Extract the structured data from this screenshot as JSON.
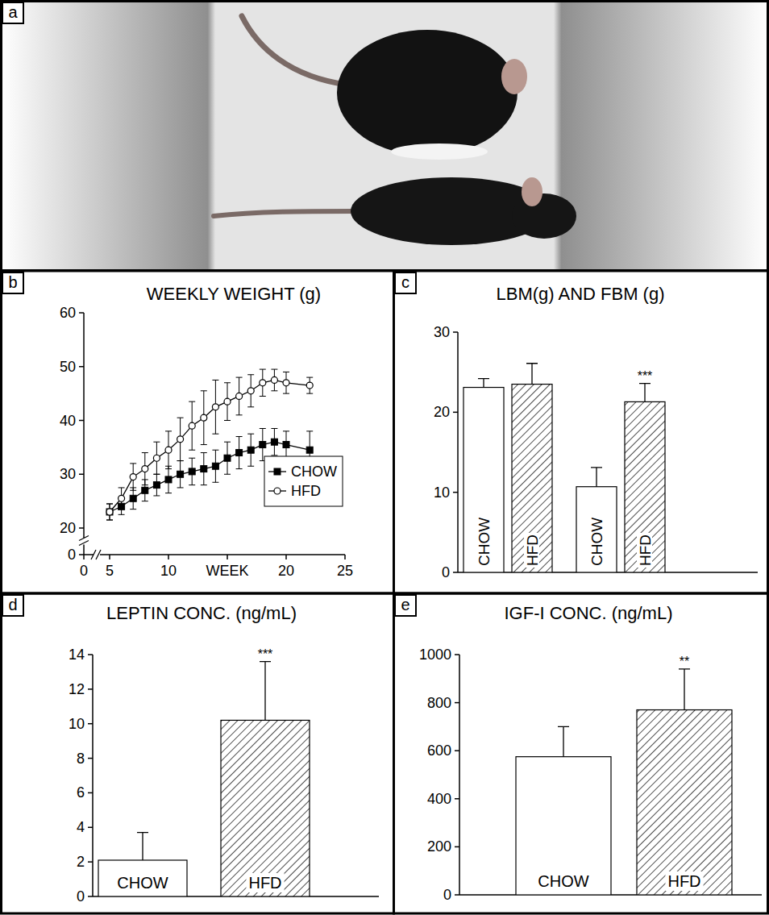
{
  "photo": {
    "panel_label": "a"
  },
  "chart_data": [
    {
      "panel_label": "b",
      "type": "line",
      "title": "WEEKLY WEIGHT (g)",
      "x": [
        5,
        6,
        7,
        8,
        9,
        10,
        11,
        12,
        13,
        14,
        15,
        16,
        17,
        18,
        19,
        20,
        22
      ],
      "series": [
        {
          "name": "CHOW",
          "color": "#000000",
          "marker": "filled_square",
          "values": [
            23,
            24,
            25.5,
            27,
            28,
            29,
            30,
            30.5,
            31,
            31.5,
            33,
            34,
            34.5,
            35.5,
            36,
            35.5,
            34.5
          ],
          "errors": [
            1.5,
            1.5,
            2,
            2,
            2,
            2.5,
            2.5,
            2.5,
            3,
            3,
            3,
            3,
            3,
            3,
            2.5,
            2.5,
            3.5
          ]
        },
        {
          "name": "HFD",
          "color": "#000000",
          "marker": "open_circle",
          "values": [
            23,
            25.5,
            29.5,
            31,
            33,
            34.5,
            36.5,
            39,
            40.5,
            42.5,
            43.5,
            44.5,
            45.5,
            47,
            47.5,
            47,
            46.5
          ],
          "errors": [
            1.5,
            2,
            2.5,
            3,
            3,
            3.5,
            4,
            4.5,
            5,
            5,
            3.5,
            3.5,
            3,
            2.5,
            2,
            2,
            1.5
          ]
        }
      ],
      "xlim": [
        0,
        25
      ],
      "xticks": [
        0,
        5,
        10,
        {
          "value": 15,
          "label": "WEEK"
        },
        20,
        25
      ],
      "ylim": [
        0,
        60
      ],
      "yticks": [
        0,
        20,
        30,
        40,
        50,
        60
      ],
      "legend": "lower right"
    },
    {
      "panel_label": "c",
      "type": "bar",
      "title": "LBM(g) AND FBM (g)",
      "categories": [
        "CHOW",
        "HFD",
        "CHOW",
        "HFD"
      ],
      "values": [
        23.1,
        23.5,
        10.7,
        21.3
      ],
      "errors": [
        1.1,
        2.6,
        2.4,
        2.3
      ],
      "significance": [
        null,
        null,
        null,
        "***"
      ],
      "colors": [
        "#ffffff",
        "#000000",
        "#ffffff",
        "#000000"
      ],
      "ylim": [
        0,
        30
      ],
      "yticks": [
        0,
        10,
        20,
        30
      ]
    },
    {
      "panel_label": "d",
      "type": "bar",
      "title": "LEPTIN CONC. (ng/mL)",
      "categories": [
        "CHOW",
        "HFD"
      ],
      "values": [
        2.1,
        10.2
      ],
      "errors": [
        1.6,
        3.4
      ],
      "significance": [
        null,
        "***"
      ],
      "colors": [
        "#ffffff",
        "#000000"
      ],
      "ylim": [
        0,
        14
      ],
      "yticks": [
        0,
        2,
        4,
        6,
        8,
        10,
        12,
        14
      ]
    },
    {
      "panel_label": "e",
      "type": "bar",
      "title": "IGF-I CONC. (ng/mL)",
      "categories": [
        "CHOW",
        "HFD"
      ],
      "values": [
        575,
        770
      ],
      "errors": [
        125,
        170
      ],
      "significance": [
        null,
        "**"
      ],
      "colors": [
        "#ffffff",
        "#000000"
      ],
      "ylim": [
        0,
        1000
      ],
      "yticks": [
        0,
        200,
        400,
        600,
        800,
        1000
      ]
    }
  ]
}
